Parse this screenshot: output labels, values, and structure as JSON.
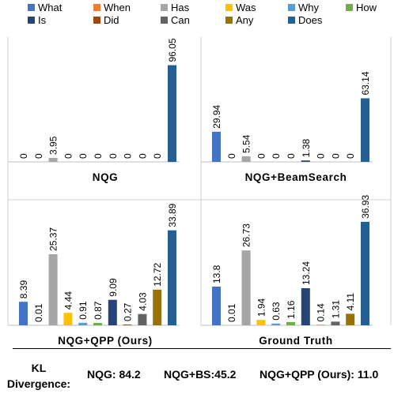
{
  "legend": {
    "entries": [
      {
        "name": "What",
        "color": "#4472c4"
      },
      {
        "name": "When",
        "color": "#ed7d31"
      },
      {
        "name": "Has",
        "color": "#a5a5a5"
      },
      {
        "name": "Was",
        "color": "#ffc000"
      },
      {
        "name": "Why",
        "color": "#5b9bd5"
      },
      {
        "name": "How",
        "color": "#70ad47"
      },
      {
        "name": "Is",
        "color": "#264478"
      },
      {
        "name": "Did",
        "color": "#9e480e"
      },
      {
        "name": "Can",
        "color": "#636363"
      },
      {
        "name": "Any",
        "color": "#997300"
      },
      {
        "name": "Does",
        "color": "#255e91"
      }
    ]
  },
  "chart_data": [
    {
      "type": "bar",
      "title": "NQG",
      "categories": [
        "What",
        "When",
        "Has",
        "Was",
        "Why",
        "How",
        "Is",
        "Did",
        "Can",
        "Any",
        "Does"
      ],
      "values": [
        0,
        0,
        3.95,
        0,
        0,
        0,
        0,
        0,
        0,
        0,
        96.05
      ],
      "labels": [
        "0",
        "0",
        "3.95",
        "0",
        "0",
        "0",
        "0",
        "0",
        "0",
        "0",
        "96.05"
      ],
      "ylim": [
        0,
        100
      ],
      "grid": false
    },
    {
      "type": "bar",
      "title": "NQG+BeamSearch",
      "categories": [
        "What",
        "When",
        "Has",
        "Was",
        "Why",
        "How",
        "Is",
        "Did",
        "Can",
        "Any",
        "Does"
      ],
      "values": [
        29.94,
        0,
        5.54,
        0,
        0,
        0,
        1.38,
        0,
        0,
        0,
        63.14
      ],
      "labels": [
        "29.94",
        "0",
        "5.54",
        "0",
        "0",
        "0",
        "1.38",
        "0",
        "0",
        "0",
        "63.14"
      ],
      "ylim": [
        0,
        100
      ],
      "grid": false
    },
    {
      "type": "bar",
      "title": "NQG+QPP (Ours)",
      "categories": [
        "What",
        "When",
        "Has",
        "Was",
        "Why",
        "How",
        "Is",
        "Did",
        "Can",
        "Any",
        "Does"
      ],
      "values": [
        8.39,
        0.01,
        25.37,
        4.44,
        0.91,
        0.87,
        9.09,
        0.27,
        4.03,
        12.72,
        33.89
      ],
      "labels": [
        "8.39",
        "0.01",
        "25.37",
        "4.44",
        "0.91",
        "0.87",
        "9.09",
        "0.27",
        "4.03",
        "12.72",
        "33.89"
      ],
      "ylim": [
        0,
        40
      ],
      "grid": false
    },
    {
      "type": "bar",
      "title": "Ground Truth",
      "categories": [
        "What",
        "When",
        "Has",
        "Was",
        "Why",
        "How",
        "Is",
        "Did",
        "Can",
        "Any",
        "Does"
      ],
      "values": [
        13.8,
        0.01,
        26.73,
        1.94,
        0.63,
        1.16,
        13.24,
        0.14,
        1.31,
        4.11,
        36.93
      ],
      "labels": [
        "13.8",
        "0.01",
        "26.73",
        "1.94",
        "0.63",
        "1.16",
        "13.24",
        "0.14",
        "1.31",
        "4.11",
        "36.93"
      ],
      "ylim": [
        0,
        40
      ],
      "grid": false
    }
  ],
  "kl": {
    "label": "KL Divergence:",
    "nqg": "NQG: 84.2",
    "nqg_bs": "NQG+BS:45.2",
    "nqg_qpp": "NQG+QPP (Ours): 11.0"
  }
}
